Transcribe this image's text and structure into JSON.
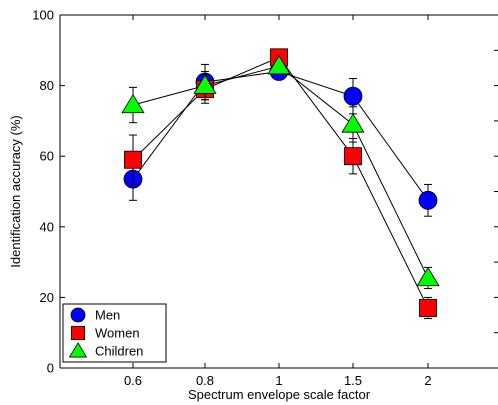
{
  "chart_data": {
    "type": "line",
    "categories": [
      "0.6",
      "0.8",
      "1",
      "1.5",
      "2"
    ],
    "xlabel": "Spectrum envelope scale factor",
    "ylabel": "Identification accuracy (%)",
    "ylim": [
      0,
      100
    ],
    "yticks": [
      "0",
      "20",
      "40",
      "60",
      "80",
      "100"
    ],
    "grid": false,
    "legend_position": "bottom-left",
    "series": [
      {
        "name": "Men",
        "marker": "circle",
        "color": "#0000ff",
        "values": [
          53.5,
          81,
          84,
          77,
          47.5
        ],
        "errors": [
          6,
          5,
          2,
          5,
          4.5
        ]
      },
      {
        "name": "Women",
        "marker": "square",
        "color": "#ff0000",
        "values": [
          59,
          79,
          88,
          60,
          17
        ],
        "errors": [
          7,
          4,
          1.5,
          5,
          3
        ]
      },
      {
        "name": "Children",
        "marker": "triangle",
        "color": "#00ff00",
        "values": [
          74.5,
          80,
          85.5,
          69,
          25.5
        ],
        "errors": [
          5,
          4,
          1.5,
          5,
          3
        ]
      }
    ]
  }
}
